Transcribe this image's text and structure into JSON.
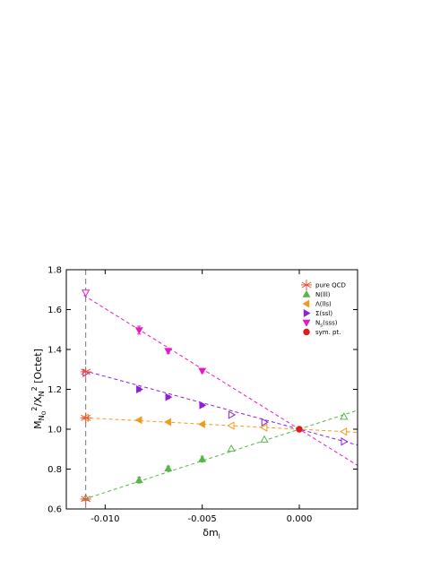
{
  "chart_data": {
    "type": "scatter",
    "xlabel": "δm",
    "xlabel_sub": "l",
    "ylabel_parts": [
      {
        "t": "M",
        "sub": false,
        "sup": false
      },
      {
        "t": "N",
        "sub": true,
        "sup": false
      },
      {
        "t": "O",
        "sub": true,
        "sup": false,
        "small": true
      },
      {
        "t": "2",
        "sub": false,
        "sup": true
      },
      {
        "t": "/X",
        "sub": false,
        "sup": false
      },
      {
        "t": "N",
        "sub": true,
        "sup": false
      },
      {
        "t": "2",
        "sub": false,
        "sup": true
      },
      {
        "t": " [Octet]",
        "sub": false,
        "sup": false
      }
    ],
    "xlim": [
      -0.012,
      0.003
    ],
    "ylim": [
      0.6,
      1.8
    ],
    "xticks": [
      -0.01,
      -0.005,
      0.0
    ],
    "xtick_labels": [
      "-0.010",
      "-0.005",
      "0.000"
    ],
    "yticks": [
      0.6,
      0.8,
      1.0,
      1.2,
      1.4,
      1.6,
      1.8
    ],
    "ytick_labels": [
      "0.6",
      "0.8",
      "1.0",
      "1.2",
      "1.4",
      "1.6",
      "1.8"
    ],
    "vline_x": -0.011,
    "legend_position": "top-right",
    "legend": [
      {
        "label": "pure QCD",
        "marker": "asterisk",
        "color": "#e8553a"
      },
      {
        "label": "N(lll)",
        "marker": "triangle-up",
        "color": "#59b548"
      },
      {
        "label": "Λ(lls)",
        "marker": "triangle-left",
        "color": "#f29a1e"
      },
      {
        "label": "Σ(ssl)",
        "marker": "triangle-right",
        "color": "#8f1fd6"
      },
      {
        "label": "N",
        "label_sub": "s",
        "label_rest": "(sss)",
        "marker": "triangle-down",
        "color": "#e619c6"
      },
      {
        "label": "sym. pt.",
        "marker": "circle",
        "color": "#e01b1b"
      }
    ],
    "series": [
      {
        "name": "N(lll)",
        "color": "#59b548",
        "marker": "triangle-up",
        "fit": {
          "slope": 31.7,
          "intercept": 1.0
        },
        "filled": [
          {
            "x": -0.00825,
            "y": 0.745,
            "err": 0.015
          },
          {
            "x": -0.00675,
            "y": 0.803,
            "err": 0.012
          },
          {
            "x": -0.005,
            "y": 0.85,
            "err": 0.015
          }
        ],
        "open": [
          {
            "x": -0.011,
            "y": 0.655
          },
          {
            "x": -0.0035,
            "y": 0.902
          },
          {
            "x": -0.0018,
            "y": 0.948
          },
          {
            "x": 0.0023,
            "y": 1.063
          }
        ]
      },
      {
        "name": "Λ(lls)",
        "color": "#f29a1e",
        "marker": "triangle-left",
        "fit": {
          "slope": -5.2,
          "intercept": 1.0
        },
        "filled": [
          {
            "x": -0.00825,
            "y": 1.046
          },
          {
            "x": -0.00675,
            "y": 1.036
          },
          {
            "x": -0.005,
            "y": 1.025
          }
        ],
        "open": [
          {
            "x": -0.011,
            "y": 1.057
          },
          {
            "x": -0.0035,
            "y": 1.018
          },
          {
            "x": -0.0018,
            "y": 1.008
          },
          {
            "x": 0.0023,
            "y": 0.988
          }
        ]
      },
      {
        "name": "Σ(ssl)",
        "color": "#8f1fd6",
        "marker": "triangle-right",
        "fit": {
          "slope": -26.5,
          "intercept": 1.0
        },
        "filled": [
          {
            "x": -0.00825,
            "y": 1.2,
            "err": 0.01
          },
          {
            "x": -0.00675,
            "y": 1.161,
            "err": 0.008
          },
          {
            "x": -0.005,
            "y": 1.12,
            "err": 0.008
          }
        ],
        "open": [
          {
            "x": -0.011,
            "y": 1.283
          },
          {
            "x": -0.0035,
            "y": 1.072
          },
          {
            "x": -0.0018,
            "y": 1.035
          },
          {
            "x": 0.0023,
            "y": 0.938
          }
        ]
      },
      {
        "name": "N_s(sss)",
        "color": "#e619c6",
        "marker": "triangle-down",
        "fit": {
          "slope": -60.5,
          "intercept": 1.0
        },
        "filled": [
          {
            "x": -0.00825,
            "y": 1.497,
            "err": 0.02
          },
          {
            "x": -0.00675,
            "y": 1.393,
            "err": 0.012
          },
          {
            "x": -0.005,
            "y": 1.293,
            "err": 0.01
          }
        ],
        "open": [
          {
            "x": -0.011,
            "y": 1.685
          }
        ]
      }
    ],
    "pure_qcd_points": [
      {
        "x": -0.011,
        "y": 0.65
      },
      {
        "x": -0.011,
        "y": 1.057
      },
      {
        "x": -0.011,
        "y": 1.288
      }
    ],
    "sym_point": {
      "x": 0.0,
      "y": 1.0
    }
  }
}
